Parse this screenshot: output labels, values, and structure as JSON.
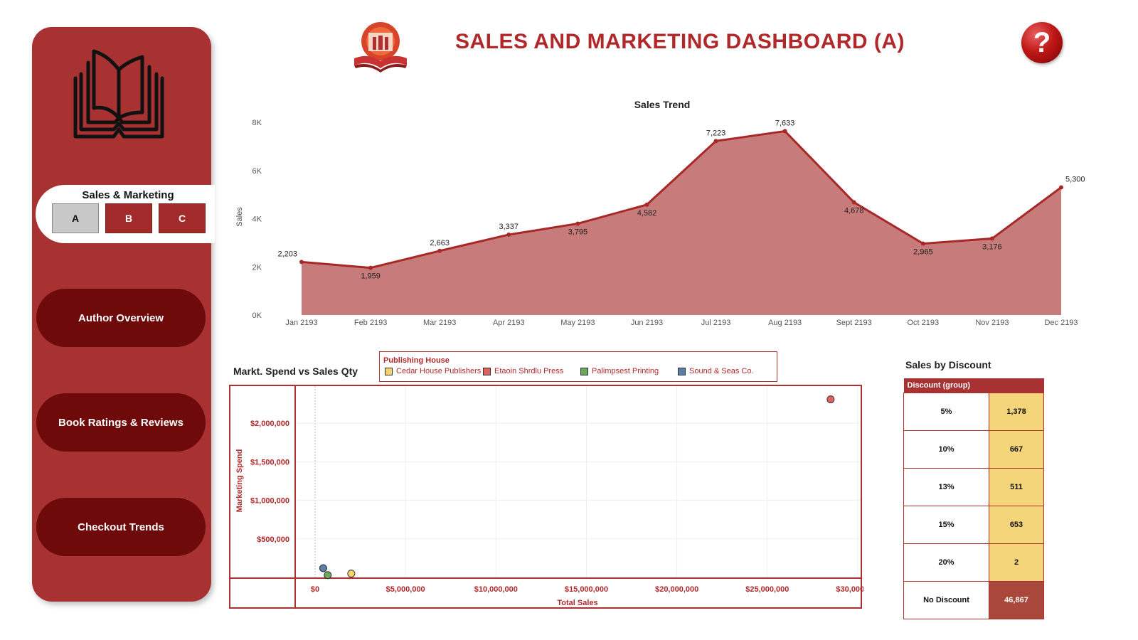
{
  "header": {
    "title": "SALES AND MARKETING DASHBOARD (A)",
    "help_label": "?"
  },
  "sidebar": {
    "section_title": "Sales & Marketing",
    "variant_buttons": [
      {
        "label": "A",
        "active": true
      },
      {
        "label": "B",
        "active": false
      },
      {
        "label": "C",
        "active": false
      }
    ],
    "nav": [
      {
        "label": "Author Overview"
      },
      {
        "label": "Book Ratings & Reviews"
      },
      {
        "label": "Checkout Trends"
      }
    ]
  },
  "colors": {
    "brand": "#a83232",
    "title": "#b0282a",
    "nav_dark": "#6e0a0a",
    "area_fill": "#c77b7b",
    "line": "#a82828"
  },
  "chart_data": [
    {
      "type": "area",
      "title": "Sales Trend",
      "ylabel": "Sales",
      "xlabel": "",
      "categories": [
        "Jan 2193",
        "Feb 2193",
        "Mar 2193",
        "Apr 2193",
        "May 2193",
        "Jun 2193",
        "Jul 2193",
        "Aug 2193",
        "Sept 2193",
        "Oct 2193",
        "Nov 2193",
        "Dec 2193"
      ],
      "values": [
        2203,
        1959,
        2663,
        3337,
        3795,
        4582,
        7223,
        7633,
        4678,
        2965,
        3176,
        5300
      ],
      "data_labels": [
        "2,203",
        "1,959",
        "2,663",
        "3,337",
        "3,795",
        "4,582",
        "7,223",
        "7,633",
        "4,678",
        "2,965",
        "3,176",
        "5,300"
      ],
      "yticks": [
        "0K",
        "2K",
        "4K",
        "6K",
        "8K"
      ],
      "ylim": [
        0,
        8000
      ],
      "grid": false
    },
    {
      "type": "scatter",
      "title": "Markt. Spend vs Sales Qty",
      "xlabel": "Total Sales",
      "ylabel": "Marketing Spend",
      "legend_title": "Publishing House",
      "legend_position": "top",
      "xticks": [
        "$0",
        "$5,000,000",
        "$10,000,000",
        "$15,000,000",
        "$20,000,000",
        "$25,000,000",
        "$30,000,000"
      ],
      "yticks": [
        "$500,000",
        "$1,000,000",
        "$1,500,000",
        "$2,000,000"
      ],
      "xlim": [
        0,
        30000000
      ],
      "ylim": [
        0,
        2500000
      ],
      "grid": true,
      "series": [
        {
          "name": "Cedar House Publishers",
          "color": "#f5d36a",
          "points": [
            [
              2000000,
              50000
            ]
          ]
        },
        {
          "name": "Etaoin Shrdlu Press",
          "color": "#e06060",
          "points": [
            [
              28500000,
              2310000
            ]
          ]
        },
        {
          "name": "Palimpsest Printing",
          "color": "#6ca85a",
          "points": [
            [
              700000,
              30000
            ]
          ]
        },
        {
          "name": "Sound & Seas Co.",
          "color": "#5a7fa8",
          "points": [
            [
              450000,
              120000
            ]
          ]
        }
      ]
    },
    {
      "type": "table",
      "title": "Sales by Discount",
      "header": "Discount (group)",
      "rows": [
        {
          "label": "5%",
          "value": "1,378"
        },
        {
          "label": "10%",
          "value": "667"
        },
        {
          "label": "13%",
          "value": "511"
        },
        {
          "label": "15%",
          "value": "653"
        },
        {
          "label": "20%",
          "value": "2"
        },
        {
          "label": "No Discount",
          "value": "46,867"
        }
      ]
    }
  ]
}
